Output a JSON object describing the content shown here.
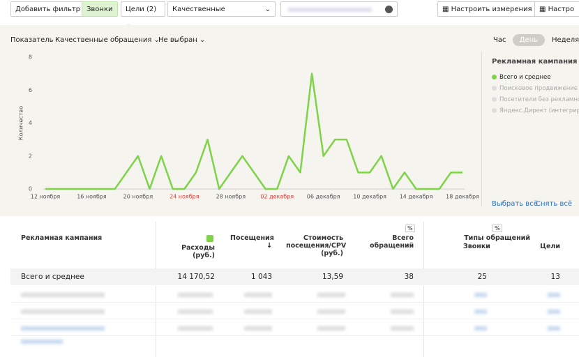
{
  "toolbar": {
    "add_filter": "Добавить фильтр",
    "calls": "Звонки",
    "goals": "Цели (2)",
    "quality": "Качественные",
    "dimensions": "Настроить измерения",
    "more": "Настро"
  },
  "chart_header": {
    "metric_label": "Показатель",
    "metric": "Качественные обращения",
    "second": "Не выбран",
    "hour": "Час",
    "day": "День",
    "week": "Неделя"
  },
  "chart_data": {
    "type": "line",
    "ylabel": "Количество",
    "categories": [
      "12 ноября",
      null,
      null,
      null,
      "16 ноября",
      null,
      null,
      null,
      "20 ноября",
      null,
      null,
      null,
      "24 ноября",
      null,
      null,
      null,
      "28 ноября",
      null,
      null,
      null,
      "02 декабря",
      null,
      null,
      null,
      "06 декабря",
      null,
      null,
      null,
      "10 декабря",
      null,
      null,
      null,
      "14 декабря",
      null,
      null,
      null,
      "18 декабря"
    ],
    "category_colors": [
      null,
      null,
      null,
      null,
      null,
      null,
      null,
      null,
      null,
      null,
      null,
      null,
      "#e53935",
      null,
      null,
      null,
      null,
      null,
      null,
      null,
      "#e53935",
      null,
      null,
      null,
      null,
      null,
      null,
      null,
      null,
      null,
      null,
      null,
      null,
      null,
      null,
      null,
      null
    ],
    "series": [
      {
        "name": "Всего и среднее",
        "color": "#7ed348",
        "values": [
          0,
          0,
          0,
          0,
          0,
          0,
          0,
          1,
          2,
          0,
          2,
          0,
          0,
          1,
          3,
          0,
          1,
          2,
          1,
          0,
          0,
          2,
          1,
          7,
          2,
          3,
          3,
          1,
          1,
          2,
          0,
          1,
          0,
          0,
          0,
          1,
          1
        ]
      }
    ],
    "ylim": [
      0,
      8
    ],
    "yticks": [
      0,
      2,
      4,
      6,
      8
    ],
    "grid": false
  },
  "legend": {
    "title": "Рекламная кампания (вы",
    "items": [
      "Поисковое продвижение",
      "Посетители без рекламной",
      "Яндекс.Директ (интегриро"
    ],
    "select_all": "Выбрать всё",
    "clear_all": "Снять всё"
  },
  "table": {
    "headers": [
      "Рекламная кампания",
      "Расходы (руб.)",
      "Посещения",
      "Стоимость посещения/CPV (руб.)",
      "Всего обращений",
      "Типы обращений",
      "Звонки",
      "Цели"
    ],
    "total": [
      "Всего и среднее",
      "14 170,52",
      "1 043",
      "13,59",
      "38",
      "25",
      "13"
    ]
  }
}
